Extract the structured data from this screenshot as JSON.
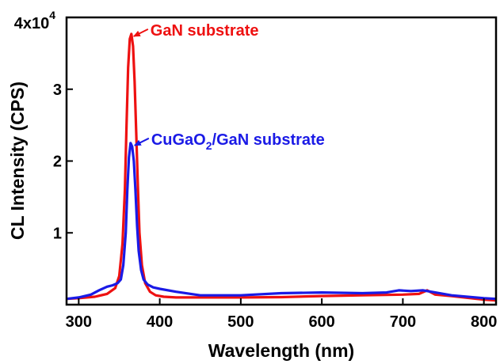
{
  "chart_data": {
    "type": "line",
    "xlabel": "Wavelength (nm)",
    "ylabel": "CL Intensity (CPS)",
    "xlim": [
      285,
      815
    ],
    "ylim": [
      0,
      40000
    ],
    "x_ticks": [
      300,
      400,
      500,
      600,
      700,
      800
    ],
    "x_tick_labels": [
      "300",
      "400",
      "500",
      "600",
      "700",
      "800"
    ],
    "y_ticks": [
      10000,
      20000,
      30000,
      40000
    ],
    "y_tick_labels": [
      "1",
      "2",
      "3",
      "4x10"
    ],
    "y_exponent": "4",
    "grid": false,
    "legend": "none",
    "annotations": [
      {
        "text": "GaN substrate",
        "series": 0,
        "x": 365,
        "y": 37700,
        "color": "#ee1111"
      },
      {
        "text_parts": [
          "CuGaO",
          "2",
          "/GaN substrate"
        ],
        "series": 1,
        "x": 366,
        "y": 22500,
        "color": "#1a1ae6"
      }
    ],
    "series": [
      {
        "color": "#ee1111",
        "x": [
          285,
          300,
          320,
          335,
          345,
          350,
          354,
          357,
          359,
          361,
          363,
          365,
          367,
          369,
          371,
          373,
          375,
          378,
          382,
          388,
          395,
          405,
          420,
          450,
          500,
          550,
          600,
          650,
          700,
          720,
          730,
          740,
          760,
          800,
          815
        ],
        "y": [
          800,
          900,
          1100,
          1500,
          2300,
          4000,
          8500,
          16000,
          25000,
          33000,
          37000,
          37700,
          36000,
          31000,
          24000,
          16500,
          10000,
          5500,
          3000,
          1800,
          1300,
          1100,
          1000,
          1000,
          1000,
          1050,
          1200,
          1300,
          1400,
          1500,
          2000,
          1400,
          1200,
          700,
          600
        ]
      },
      {
        "color": "#1a1ae6",
        "x": [
          285,
          300,
          315,
          325,
          335,
          342,
          348,
          352,
          355,
          358,
          360,
          362,
          364,
          366,
          368,
          370,
          372,
          374,
          377,
          380,
          385,
          392,
          400,
          420,
          450,
          500,
          550,
          600,
          650,
          680,
          695,
          710,
          725,
          740,
          760,
          800,
          815
        ],
        "y": [
          800,
          1000,
          1400,
          2000,
          2500,
          2700,
          3000,
          3500,
          5500,
          10000,
          16000,
          20500,
          22500,
          22000,
          20000,
          16000,
          11000,
          7500,
          4800,
          3500,
          2800,
          2400,
          2200,
          1800,
          1300,
          1300,
          1600,
          1700,
          1600,
          1700,
          2000,
          1900,
          2000,
          1700,
          1300,
          900,
          800
        ]
      }
    ]
  }
}
